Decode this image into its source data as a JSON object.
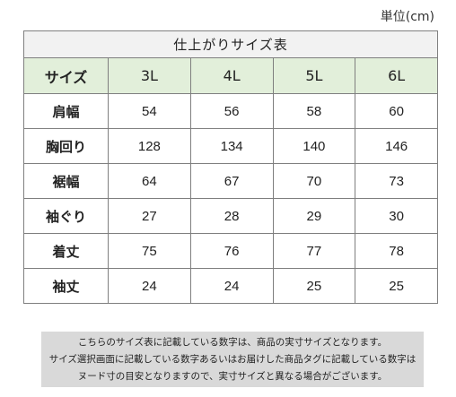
{
  "unit_label": "単位(cm)",
  "table": {
    "title": "仕上がりサイズ表",
    "header_label": "サイズ",
    "sizes": [
      "3L",
      "4L",
      "5L",
      "6L"
    ],
    "rows": [
      {
        "label": "肩幅",
        "values": [
          "54",
          "56",
          "58",
          "60"
        ]
      },
      {
        "label": "胸回り",
        "values": [
          "128",
          "134",
          "140",
          "146"
        ]
      },
      {
        "label": "裾幅",
        "values": [
          "64",
          "67",
          "70",
          "73"
        ]
      },
      {
        "label": "袖ぐり",
        "values": [
          "27",
          "28",
          "29",
          "30"
        ]
      },
      {
        "label": "着丈",
        "values": [
          "75",
          "76",
          "77",
          "78"
        ]
      },
      {
        "label": "袖丈",
        "values": [
          "24",
          "24",
          "25",
          "25"
        ]
      }
    ]
  },
  "note": {
    "lines": [
      "こちらのサイズ表に記載している数字は、商品の実寸サイズとなります。",
      "サイズ選択画面に記載している数字あるいはお届けした商品タグに記載している数字は",
      "ヌード寸の目安となりますので、実寸サイズと異なる場合がございます。"
    ]
  }
}
